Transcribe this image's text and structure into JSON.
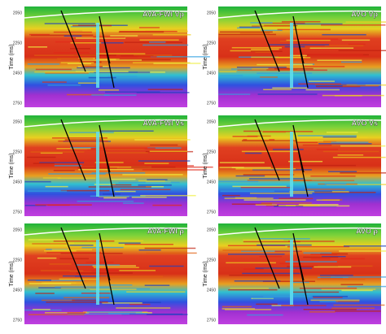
{
  "y_label": "Time (ms)",
  "panels": [
    {
      "title": "AVA-FWI Vp",
      "ticks": [
        "2050",
        "2250",
        "2450",
        "2750"
      ]
    },
    {
      "title": "AVO Vp",
      "ticks": [
        "2050",
        "2250",
        "2450",
        "2750"
      ]
    },
    {
      "title": "AVA-FWI Vs",
      "ticks": [
        "2050",
        "2250",
        "2450",
        "2750"
      ]
    },
    {
      "title": "AVO Vs",
      "ticks": [
        "2050",
        "2250",
        "2450",
        "2750"
      ]
    },
    {
      "title": "AVA-FWI ρ",
      "ticks": [
        "2050",
        "2250",
        "2450",
        "2750"
      ]
    },
    {
      "title": "AVO ρ",
      "ticks": [
        "2050",
        "2250",
        "2450",
        "2750"
      ]
    }
  ]
}
